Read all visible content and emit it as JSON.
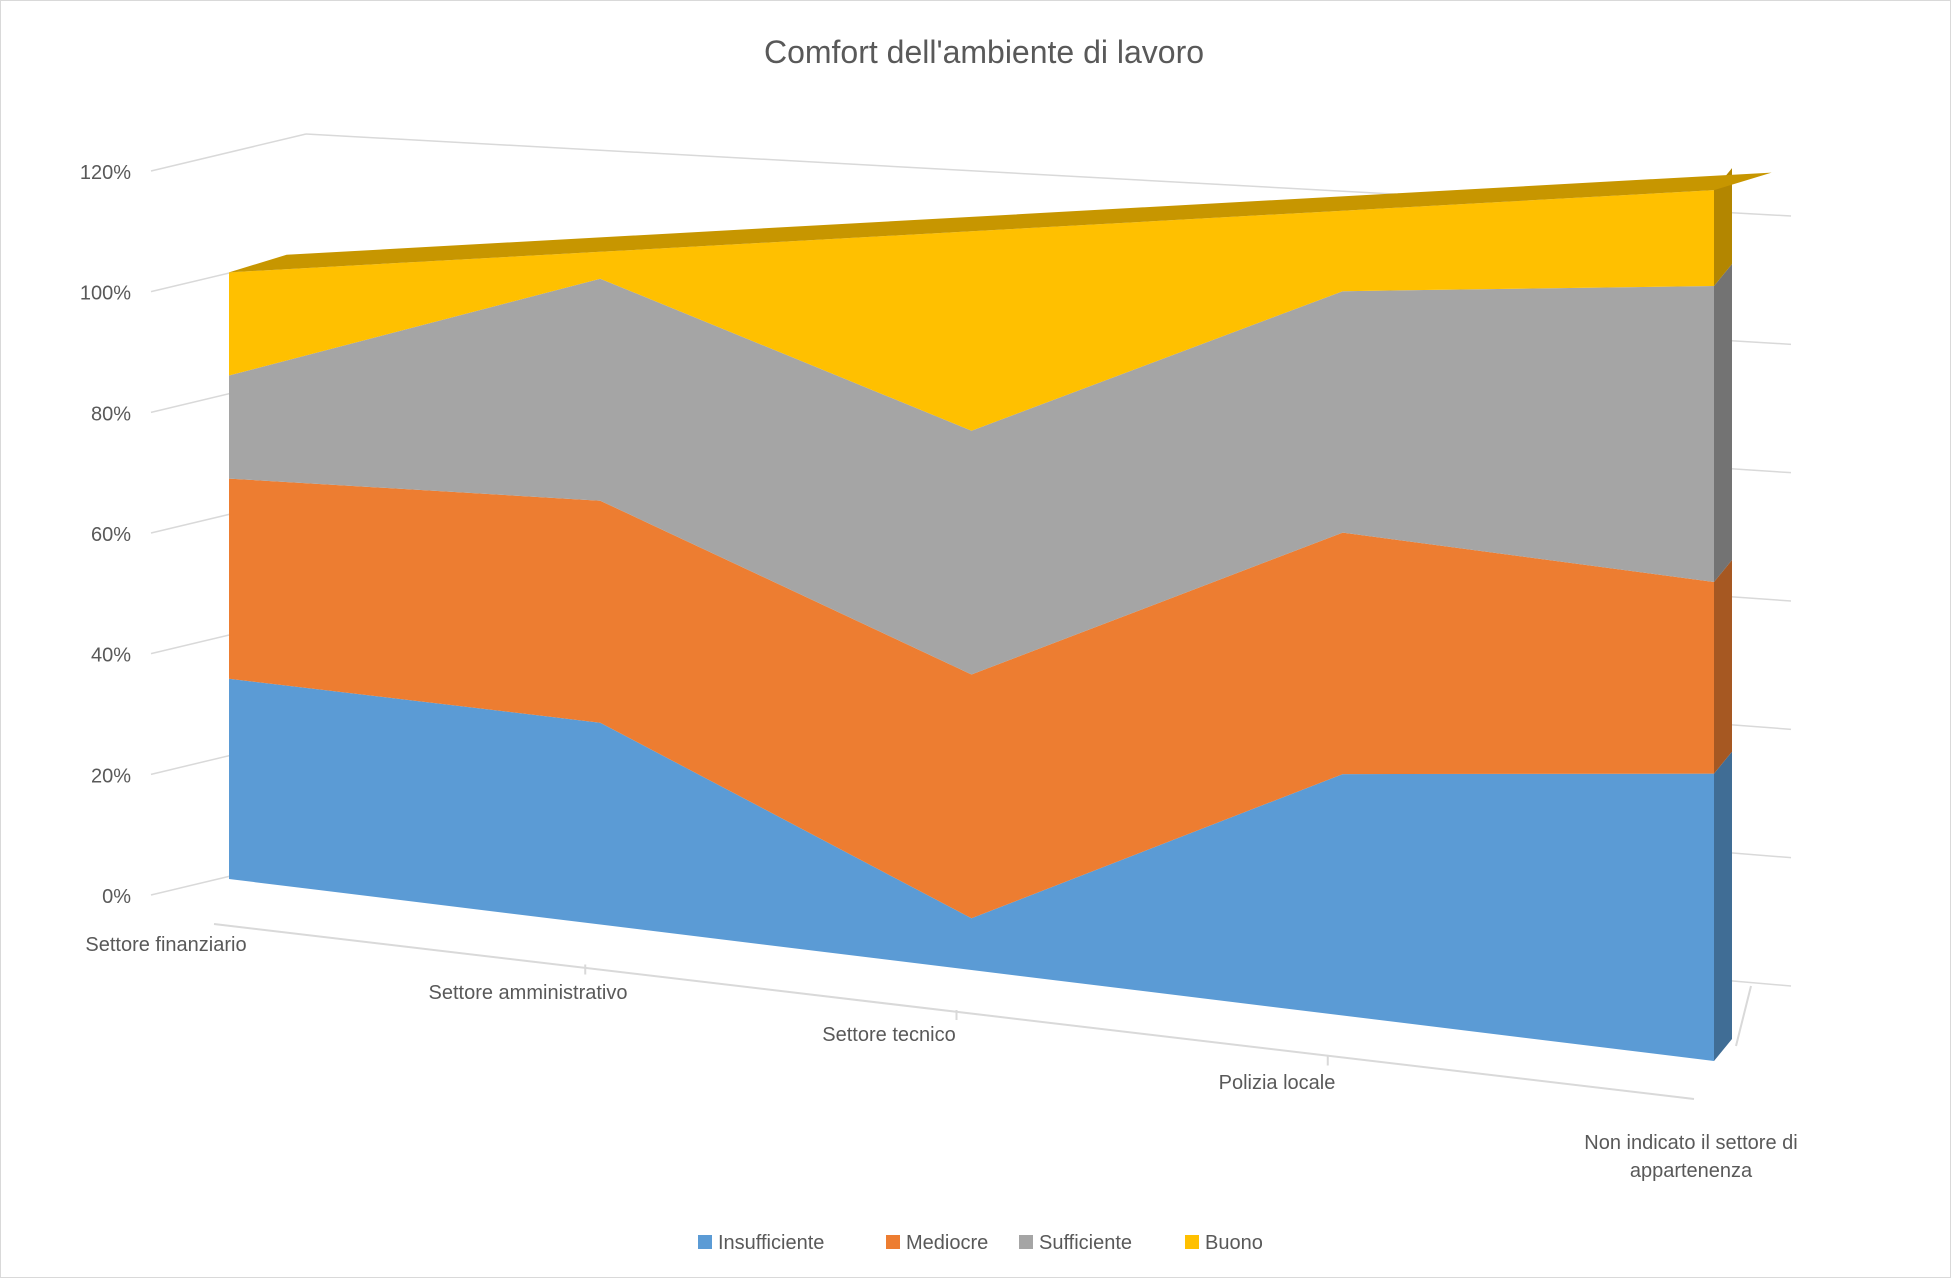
{
  "chart_data": {
    "type": "area",
    "stacked": true,
    "percent": true,
    "three_d": true,
    "title": "Comfort dell'ambiente di lavoro",
    "categories": [
      "Settore finanziario",
      "Settore amministrativo",
      "Settore tecnico",
      "Polizia locale",
      "Non indicato il settore di appartenenza"
    ],
    "series": [
      {
        "name": "Insufficiente",
        "color": "#5b9bd5",
        "values": [
          33,
          30,
          7,
          33,
          33
        ]
      },
      {
        "name": "Mediocre",
        "color": "#ed7d31",
        "values": [
          33,
          33,
          33,
          33,
          22
        ]
      },
      {
        "name": "Sufficiente",
        "color": "#a5a5a5",
        "values": [
          17,
          33,
          33,
          33,
          34
        ]
      },
      {
        "name": "Buono",
        "color": "#ffc000",
        "values": [
          17,
          4,
          27,
          11,
          11
        ]
      }
    ],
    "ylim": [
      0,
      120
    ],
    "yticks": [
      "0%",
      "20%",
      "40%",
      "60%",
      "80%",
      "100%",
      "120%"
    ],
    "grid": true,
    "legend_position": "bottom"
  }
}
